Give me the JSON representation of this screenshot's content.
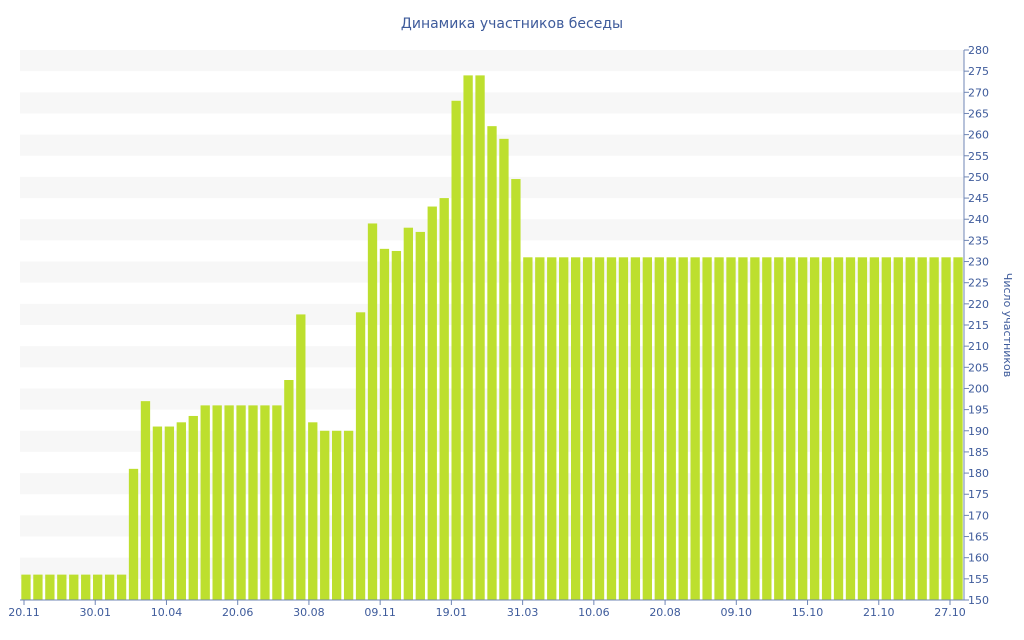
{
  "chart_data": {
    "type": "bar",
    "title": "Динамика участников беседы",
    "xlabel": "",
    "ylabel": "Число участников",
    "ylim": [
      150,
      280
    ],
    "ytick_step": 5,
    "x_tick_labels": [
      "20.11",
      "30.01",
      "10.04",
      "20.06",
      "30.08",
      "09.11",
      "19.01",
      "31.03",
      "10.06",
      "20.08",
      "09.10",
      "15.10",
      "21.10",
      "27.10"
    ],
    "y_axis_position": "right",
    "grid": "horizontal bands",
    "legend": "none",
    "colors": {
      "bar": "#bddf2e",
      "band": "#f7f7f7",
      "text": "#3e5b9b",
      "axis": "#6f86b5"
    },
    "values": [
      156,
      156,
      156,
      156,
      156,
      156,
      156,
      156,
      156,
      181,
      197,
      191,
      191,
      192,
      193.5,
      196,
      196,
      196,
      196,
      196,
      196,
      196,
      202,
      217.5,
      192,
      190,
      190,
      190,
      218,
      239,
      233,
      232.5,
      238,
      237,
      243,
      245,
      268,
      274,
      274,
      262,
      259,
      249.5,
      231,
      231,
      231,
      231,
      231,
      231,
      231,
      231,
      231,
      231,
      231,
      231,
      231,
      231,
      231,
      231,
      231,
      231,
      231,
      231,
      231,
      231,
      231,
      231,
      231,
      231,
      231,
      231,
      231,
      231,
      231,
      231,
      231,
      231,
      231,
      231,
      231
    ]
  }
}
